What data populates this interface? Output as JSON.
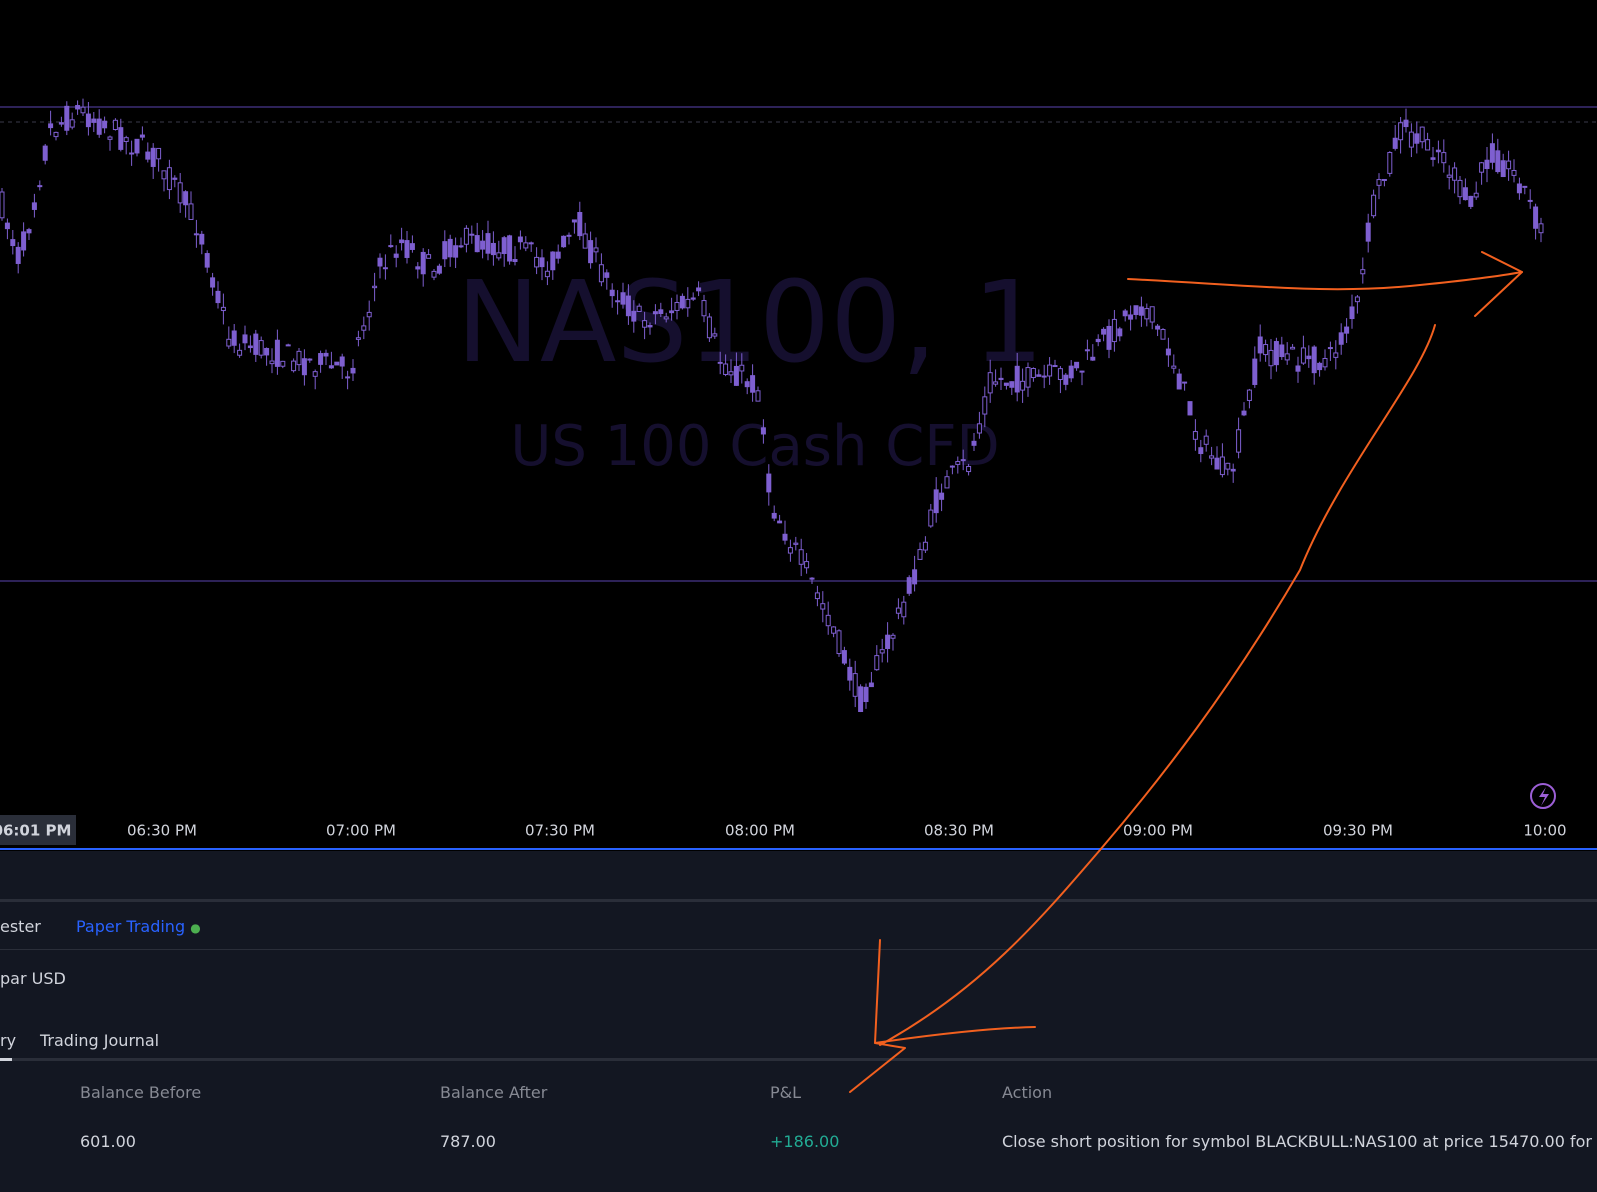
{
  "chart": {
    "symbol_watermark": "NAS100, 1",
    "description_watermark": "US 100 Cash CFD",
    "time_axis": [
      "06:01 PM",
      "06:30 PM",
      "07:00 PM",
      "07:30 PM",
      "08:00 PM",
      "08:30 PM",
      "09:00 PM",
      "09:30 PM",
      "10:00"
    ]
  },
  "panel": {
    "tabs": [
      "ester",
      "Paper Trading"
    ],
    "account": "par USD",
    "subtabs": [
      "ry",
      "Trading Journal"
    ],
    "table": {
      "headers": [
        "Balance Before",
        "Balance After",
        "P&L",
        "Action"
      ],
      "rows": [
        [
          "601.00",
          "787.00",
          "+186.00",
          "Close short position for symbol BLACKBULL:NAS100 at price 15470.00 for"
        ]
      ]
    }
  }
}
